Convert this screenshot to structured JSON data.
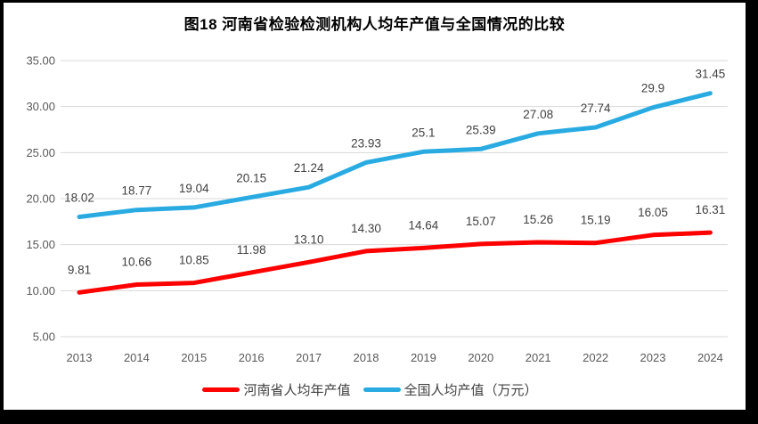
{
  "chart_data": {
    "type": "line",
    "title": "图18  河南省检验检测机构人均年产值与全国情况的比较",
    "categories": [
      "2013",
      "2014",
      "2015",
      "2016",
      "2017",
      "2018",
      "2019",
      "2020",
      "2021",
      "2022",
      "2023",
      "2024"
    ],
    "series": [
      {
        "name": "河南省人均年产值",
        "color": "#FF0000",
        "values": [
          9.81,
          10.66,
          10.85,
          11.98,
          13.1,
          14.3,
          14.64,
          15.07,
          15.26,
          15.19,
          16.05,
          16.31
        ],
        "labels": [
          "9.81",
          "10.66",
          "10.85",
          "11.98",
          "13.10",
          "14.30",
          "14.64",
          "15.07",
          "15.26",
          "15.19",
          "16.05",
          "16.31"
        ]
      },
      {
        "name": "全国人均产值（万元）",
        "color": "#29ABE2",
        "values": [
          18.02,
          18.77,
          19.04,
          20.15,
          21.24,
          23.93,
          25.1,
          25.39,
          27.08,
          27.74,
          29.9,
          31.45
        ],
        "labels": [
          "18.02",
          "18.77",
          "19.04",
          "20.15",
          "21.24",
          "23.93",
          "25.1",
          "25.39",
          "27.08",
          "27.74",
          "29.9",
          "31.45"
        ]
      }
    ],
    "y_axis": {
      "ticks": [
        "35.00",
        "30.00",
        "25.00",
        "20.00",
        "15.00",
        "10.00",
        "5.00"
      ],
      "min": 5,
      "max": 35
    },
    "xlabel": "",
    "ylabel": "",
    "grid": true,
    "legend_position": "bottom",
    "colors": {
      "gridline": "#D9D9D9",
      "axis_text": "#595959",
      "label_text": "#404040",
      "background": "#FFFFFF",
      "frame": "#000000"
    }
  }
}
